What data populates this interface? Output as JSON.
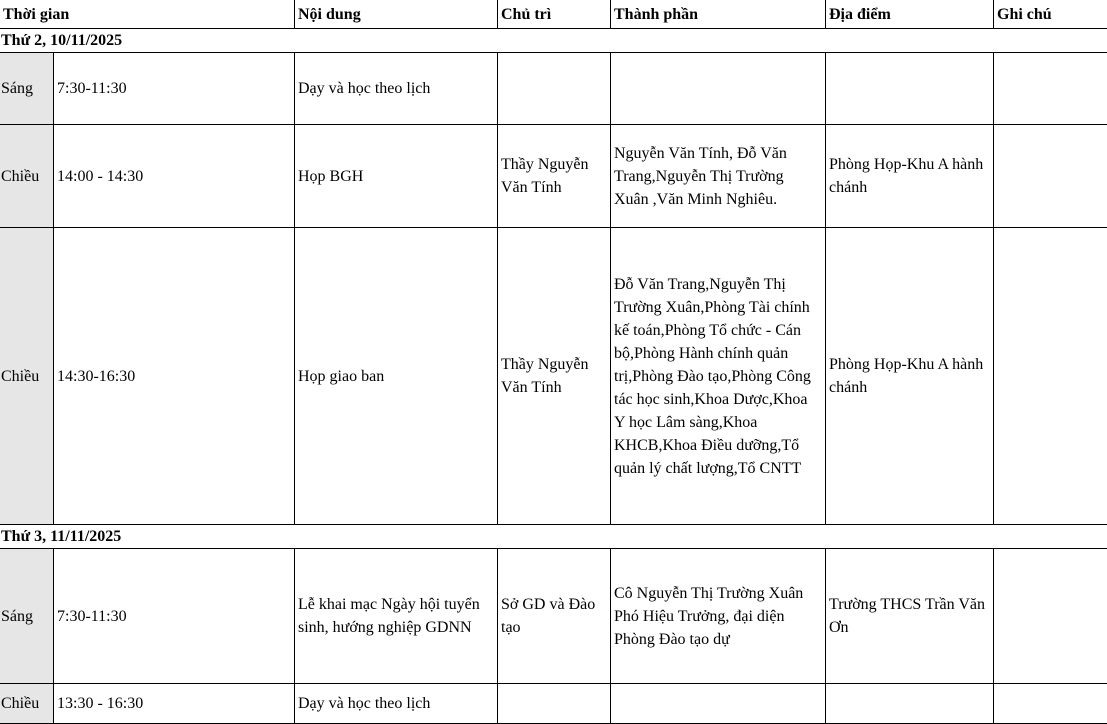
{
  "headers": {
    "time": "Thời gian",
    "content": "Nội dung",
    "host": "Chủ trì",
    "members": "Thành phần",
    "location": "Địa điểm",
    "note": "Ghi chú"
  },
  "days": [
    {
      "label": "Thứ 2, 10/11/2025",
      "rows": [
        {
          "session": "Sáng",
          "time": "7:30-11:30",
          "content": "Dạy và học theo lịch",
          "host": "",
          "members": "",
          "location": "",
          "note": ""
        },
        {
          "session": "Chiều",
          "time": "14:00 - 14:30",
          "content": "Họp BGH",
          "host": "Thầy Nguyễn Văn Tính",
          "members": "Nguyễn Văn Tính, Đỗ Văn Trang,Nguyễn Thị Trường Xuân ,Văn Minh Nghiêu.",
          "location": "Phòng Họp-Khu A hành chánh",
          "note": ""
        },
        {
          "session": "Chiều",
          "time": "14:30-16:30",
          "content": "Họp giao ban",
          "host": "Thầy Nguyễn Văn Tính",
          "members": "Đỗ Văn Trang,Nguyễn Thị Trường Xuân,Phòng Tài chính kế toán,Phòng Tổ chức - Cán bộ,Phòng Hành chính quản trị,Phòng Đào tạo,Phòng Công tác học sinh,Khoa Dược,Khoa Y học Lâm sàng,Khoa KHCB,Khoa Điều dưỡng,Tổ quản lý chất lượng,Tổ CNTT",
          "location": "Phòng Họp-Khu A hành chánh",
          "note": ""
        }
      ]
    },
    {
      "label": "Thứ 3, 11/11/2025",
      "rows": [
        {
          "session": "Sáng",
          "time": "7:30-11:30",
          "content": "Lễ khai mạc Ngày hội tuyển sinh, hướng nghiệp GDNN",
          "host": "Sở GD và Đào tạo",
          "members": "Cô Nguyễn Thị Trường Xuân Phó Hiệu Trưởng, đại diện Phòng Đào tạo dự",
          "location": "Trường THCS Trần Văn Ơn",
          "note": ""
        },
        {
          "session": "Chiều",
          "time": "13:30 - 16:30",
          "content": "Dạy và học theo lịch",
          "host": "",
          "members": "",
          "location": "",
          "note": ""
        }
      ]
    }
  ]
}
